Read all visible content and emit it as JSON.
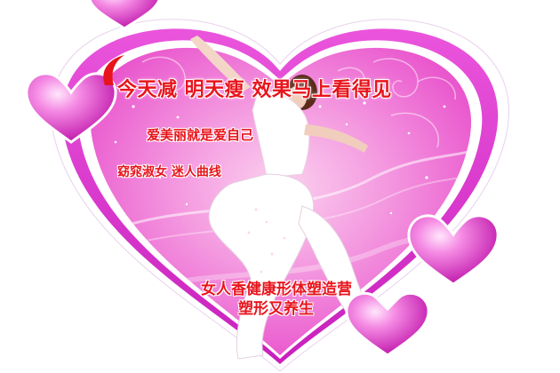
{
  "poster": {
    "slogan": "今天减  明天瘦  效果马上看得见",
    "line1": "爱美丽就是爱自己",
    "line2": "窈窕淑女   迷人曲线",
    "line3": "女人香健康形体塑造营",
    "line4": "塑形又养生"
  },
  "colors": {
    "text_red": "#e8141c",
    "outer_heart": "#e23ad6",
    "inner_fill": "#f467d2",
    "white_border": "#ffffff"
  },
  "icons": [
    "heart-icon",
    "swirl-decoration",
    "sparkle-dots"
  ]
}
